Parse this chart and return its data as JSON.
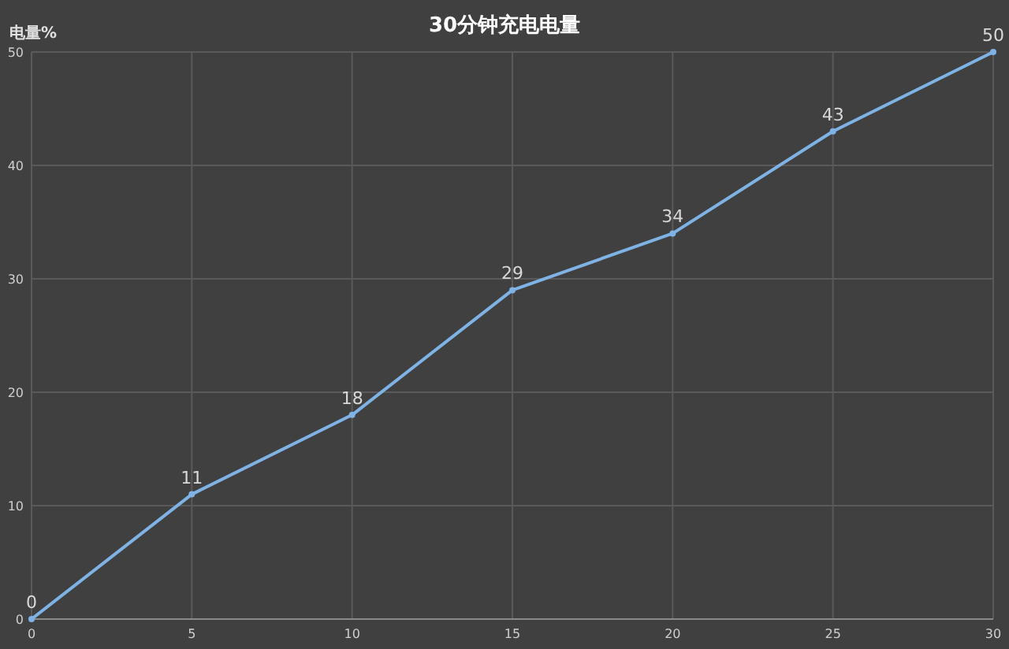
{
  "chart_data": {
    "type": "line",
    "title": "30分钟充电电量",
    "ylabel": "电量%",
    "x": [
      0,
      5,
      10,
      15,
      20,
      25,
      30
    ],
    "series": [
      {
        "color": "#7fb2e5",
        "values": [
          0,
          11,
          18,
          29,
          34,
          43,
          50
        ]
      }
    ],
    "xlim": [
      0,
      30
    ],
    "xticks": [
      0,
      5,
      10,
      15,
      20,
      25,
      30
    ],
    "ylim": [
      0,
      50
    ],
    "yticks": [
      0,
      10,
      20,
      30,
      40,
      50
    ],
    "grid": true,
    "data_labels": true,
    "marker": "circle"
  }
}
